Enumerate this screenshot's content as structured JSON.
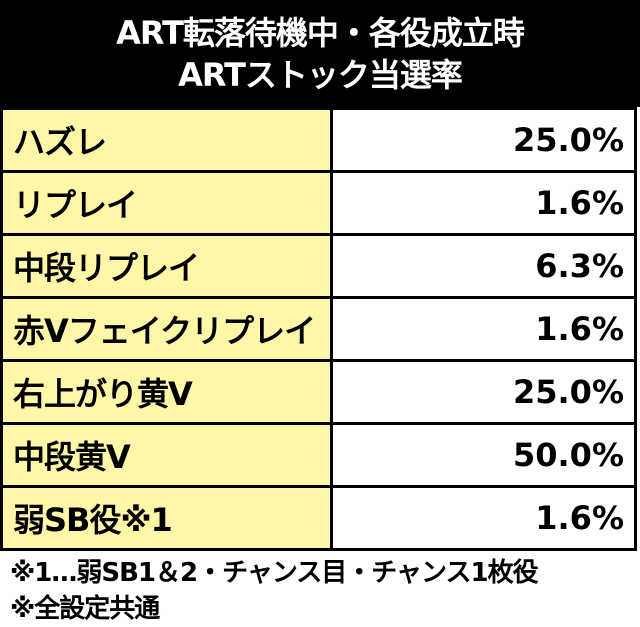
{
  "header": {
    "title_lines": [
      "ART転落待機中・各役成立時",
      "ARTストック当選率"
    ]
  },
  "table": {
    "rows": [
      [
        "ハズレ",
        "25.0%"
      ],
      [
        "リプレイ",
        "1.6%"
      ],
      [
        "中段リプレイ",
        "6.3%"
      ],
      [
        "赤Vフェイクリプレイ",
        "1.6%"
      ],
      [
        "右上がり黄V",
        "25.0%"
      ],
      [
        "中段黄V",
        "50.0%"
      ],
      [
        "弱SB役※1",
        "1.6%"
      ]
    ]
  },
  "notes": [
    "※1…弱SB1＆2・チャンス目・チャンス1枚役",
    "※全設定共通"
  ]
}
